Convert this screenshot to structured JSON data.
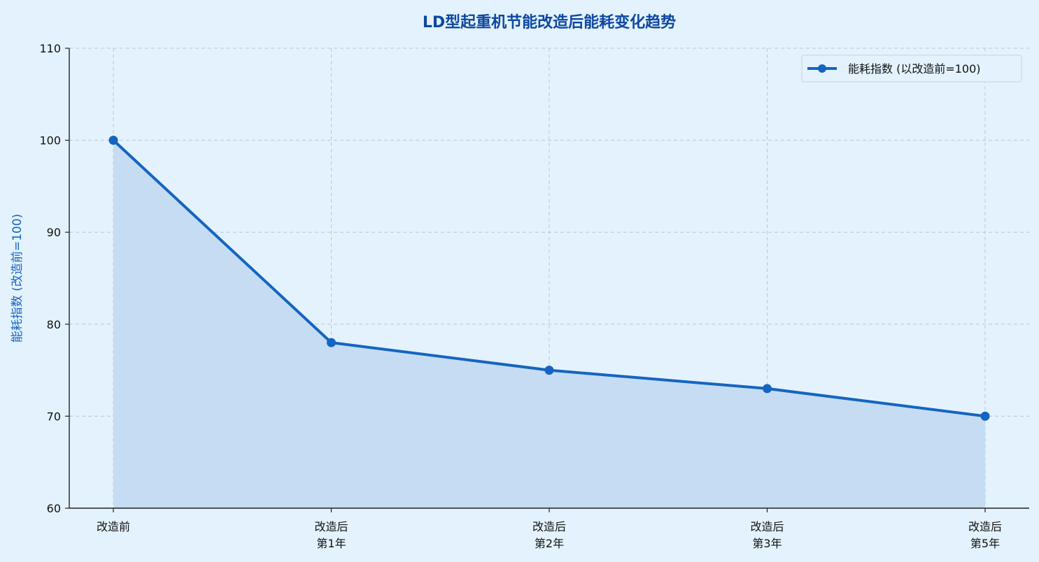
{
  "chart_data": {
    "type": "line",
    "title": "LD型起重机节能改造后能耗变化趋势",
    "xlabel": "",
    "ylabel": "能耗指数 (改造前=100)",
    "categories": [
      "改造前",
      "改造后\n第1年",
      "改造后\n第2年",
      "改造后\n第3年",
      "改造后\n第5年"
    ],
    "series": [
      {
        "name": "能耗指数 (以改造前=100)",
        "values": [
          100,
          78,
          75,
          73,
          70
        ]
      }
    ],
    "ylim": [
      60,
      110
    ],
    "yticks": [
      60,
      70,
      80,
      90,
      100,
      110
    ],
    "grid": true,
    "area_fill": true,
    "legend_position": "top-right",
    "colors": {
      "background": "#e3f2fd",
      "line": "#1565c0",
      "fill": "#c5dcf2",
      "grid": "#b8c8d6",
      "title": "#0d47a1",
      "ylabel": "#1565c0"
    }
  }
}
